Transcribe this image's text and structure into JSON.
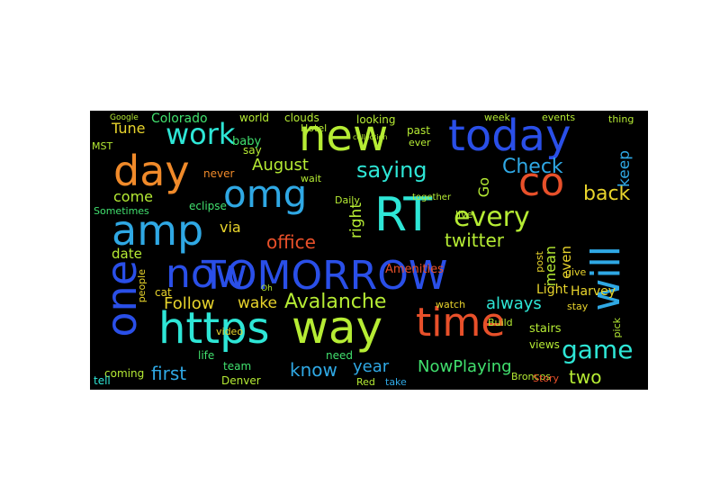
{
  "words": {
    "tomorrow": "TOMORROW",
    "now": "now",
    "https": "https",
    "way": "way",
    "rt": "RT",
    "today": "today",
    "new": "new",
    "amp": "amp",
    "omg": "omg",
    "day": "day",
    "time": "time",
    "will": "will",
    "one": "one",
    "co": "co",
    "work": "work",
    "every": "every",
    "saying": "saying",
    "game": "game",
    "avalanche": "Avalanche",
    "office": "office",
    "check": "Check",
    "back": "back",
    "twitter": "twitter",
    "nowplaying": "NowPlaying",
    "august": "August",
    "follow": "Follow",
    "first": "first",
    "know": "know",
    "year": "year",
    "two": "two",
    "always": "always",
    "right": "right",
    "keep": "keep",
    "wake": "wake",
    "via": "via",
    "come": "come",
    "colorado": "Colorado",
    "tune": "Tune",
    "date": "date",
    "go": "Go",
    "mean": "mean",
    "even": "even",
    "light": "Light",
    "harvey": "Harvey",
    "amenities": "Amenities",
    "stairs": "stairs",
    "views": "views",
    "broncos": "Broncos",
    "denver": "Denver",
    "coming": "coming",
    "tell": "tell",
    "team": "team",
    "life": "life",
    "need": "need",
    "take": "take",
    "red": "Red",
    "story": "Story",
    "watch": "watch",
    "build": "Build",
    "pick": "pick",
    "stay": "stay",
    "give": "give",
    "post": "post",
    "video": "video",
    "cat": "cat",
    "people": "people",
    "eclipse": "eclipse",
    "sometimes": "Sometimes",
    "baby": "baby",
    "never": "never",
    "say": "say",
    "wait": "wait",
    "daily": "Daily",
    "live": "live",
    "hotel": "Hotel",
    "world": "world",
    "clouds": "clouds",
    "looking": "looking",
    "past": "past",
    "ever": "ever",
    "together": "together",
    "week": "week",
    "events": "events",
    "thing": "thing",
    "mst": "MST",
    "google": "Google",
    "oh": "Oh",
    "collection": "collection"
  },
  "colors": {
    "background": "#000000",
    "blue": "#2a4fe8",
    "lightblue": "#2fa8e4",
    "cyan": "#2ee6d6",
    "green": "#41e06e",
    "yellowgreen": "#b6ec34",
    "yellow": "#e8d42c",
    "orange": "#f08a2a",
    "red": "#e8502a",
    "teal": "#25b8a8"
  }
}
